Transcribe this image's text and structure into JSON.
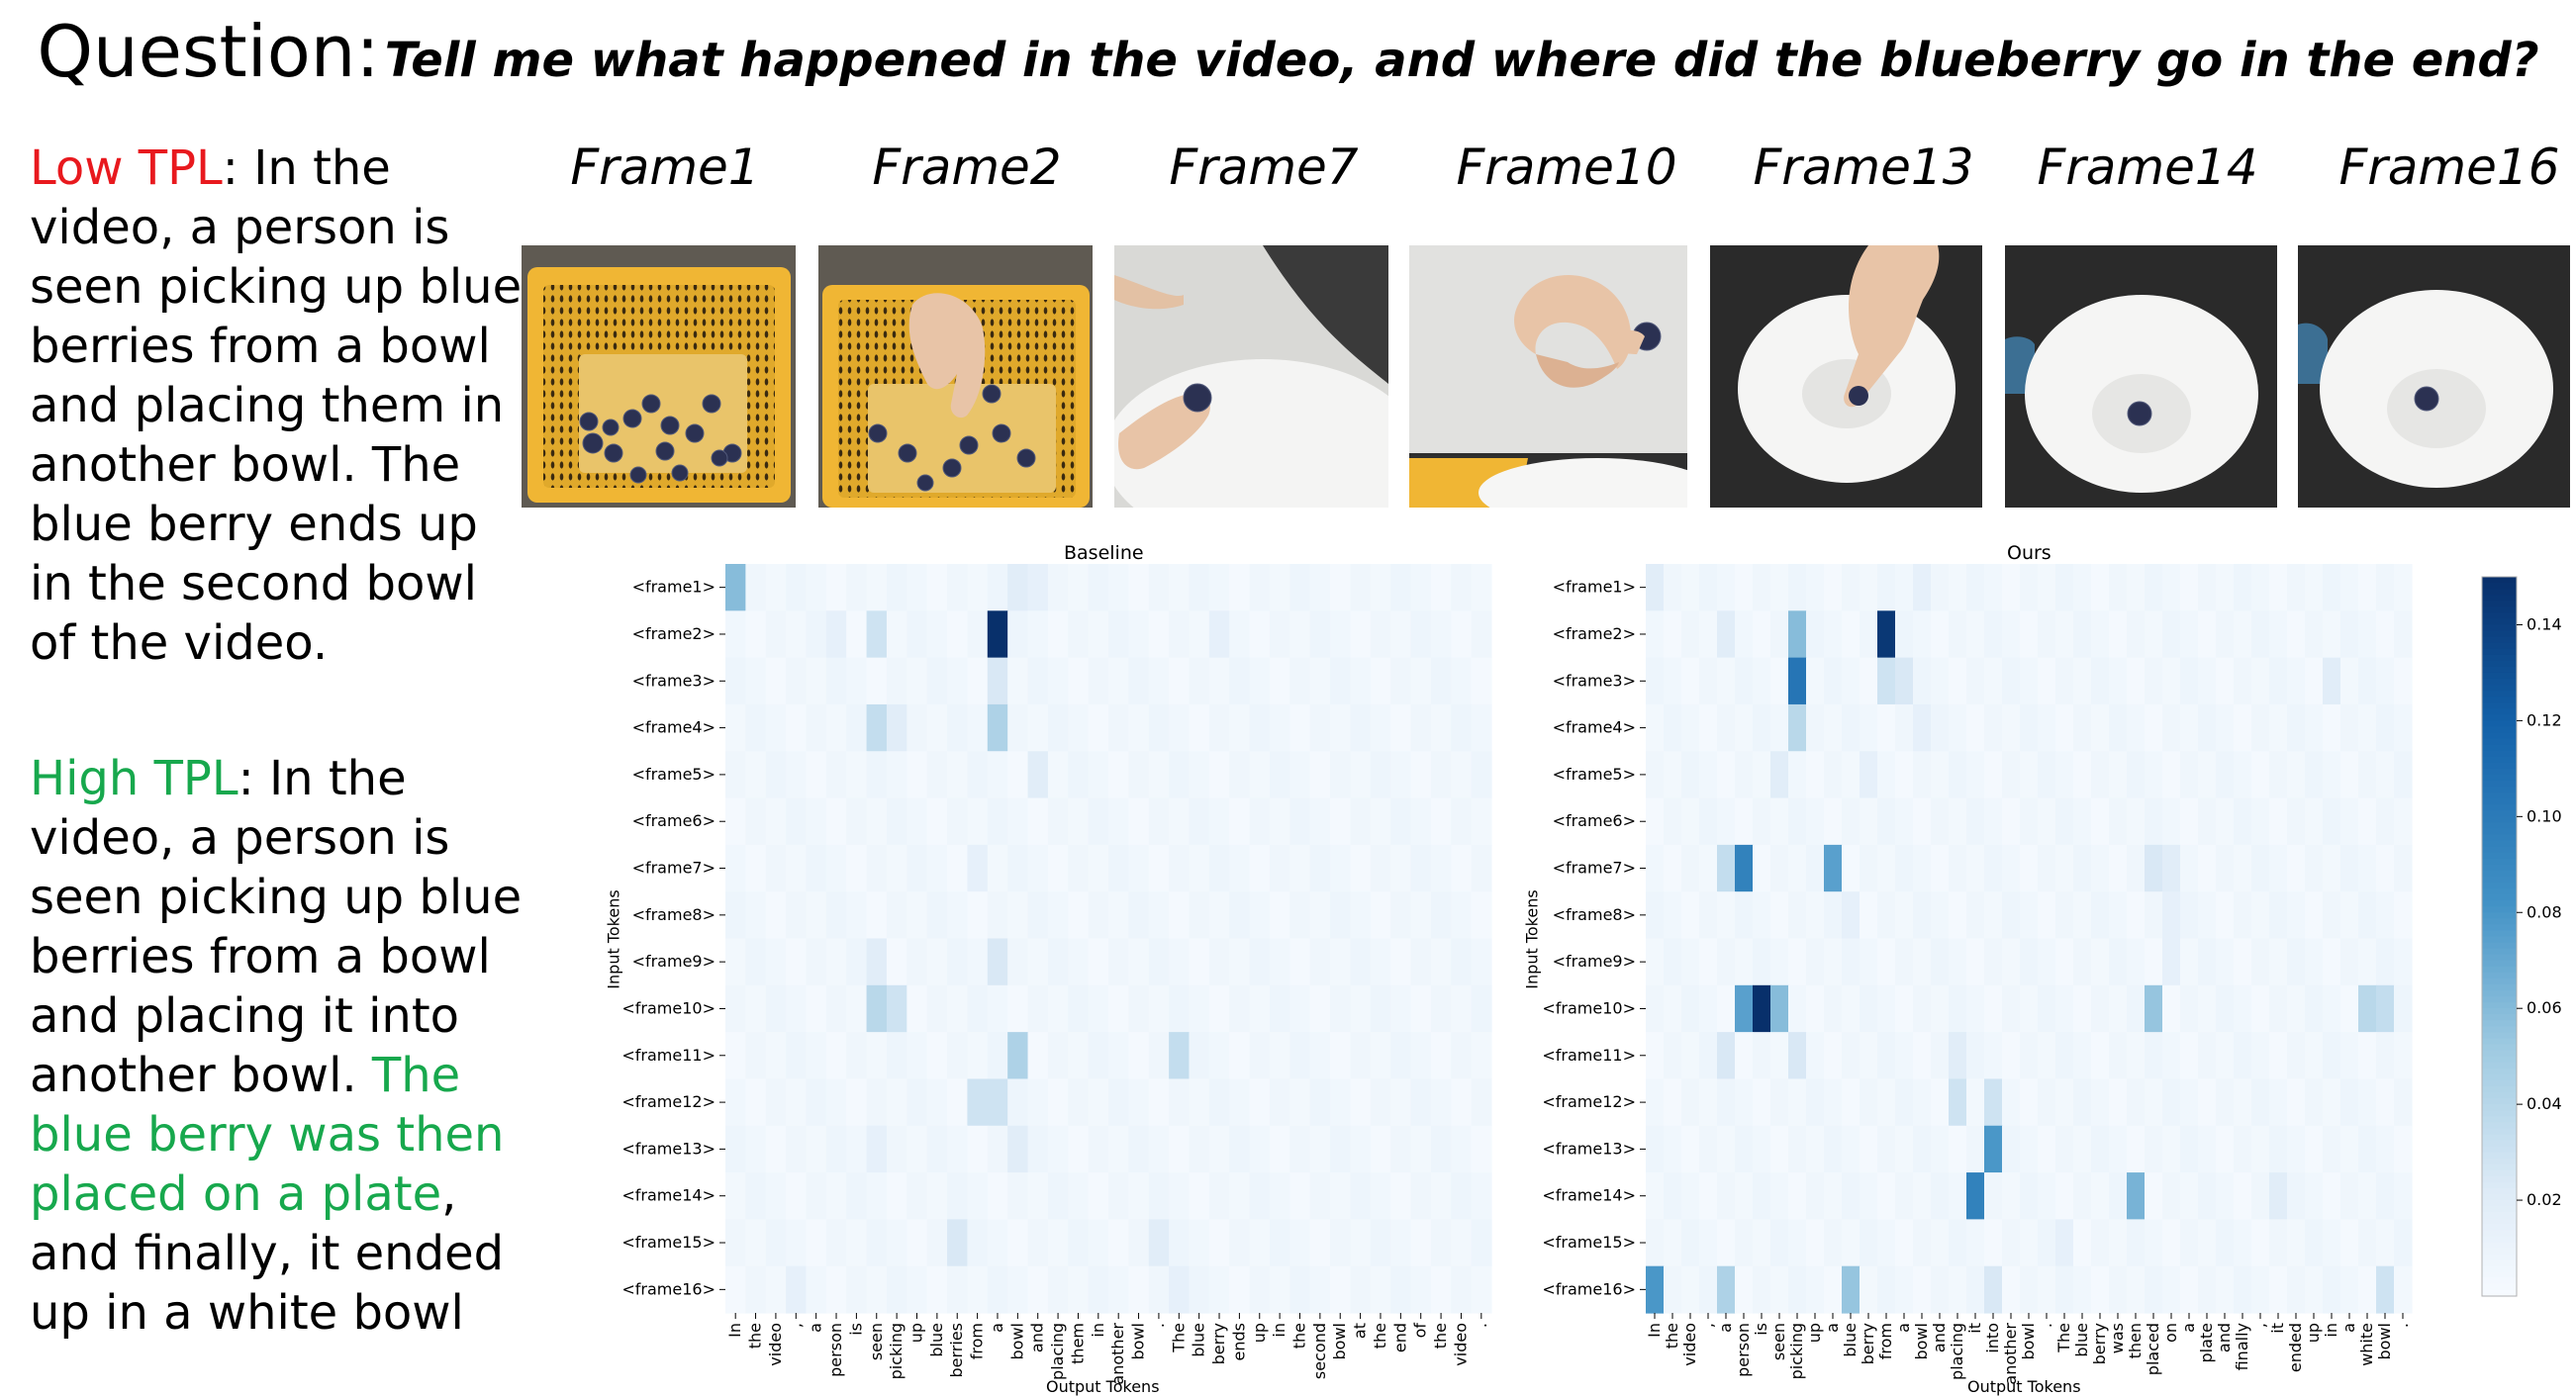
{
  "question": {
    "label": "Question:",
    "text": "Tell me what happened in the video, and where did the blueberry go in the end?"
  },
  "answers": {
    "low": {
      "label": "Low TPL",
      "text": ": In the video, a person is seen picking up blue berries from a bowl and placing them in another bowl. The blue berry ends up in the second bowl of the video.",
      "label_color": "#e8191e"
    },
    "high": {
      "label": "High TPL",
      "text_1": ": In the video, a person is seen picking up blue berries from a bowl and placing it into another bowl. ",
      "text_highlight": "The blue berry was then placed on a plate",
      "text_2": ", and finally, it ended up in a white bowl",
      "label_color": "#17a84d"
    }
  },
  "frames": {
    "labels": [
      "Frame1",
      "Frame2",
      "Frame7",
      "Frame10",
      "Frame13",
      "Frame14",
      "Frame16"
    ]
  },
  "chart_data": [
    {
      "type": "heatmap",
      "title": "Baseline",
      "xlabel": "Output Tokens",
      "ylabel": "Input Tokens",
      "rows": [
        "<frame1>",
        "<frame2>",
        "<frame3>",
        "<frame4>",
        "<frame5>",
        "<frame6>",
        "<frame7>",
        "<frame8>",
        "<frame9>",
        "<frame10>",
        "<frame11>",
        "<frame12>",
        "<frame13>",
        "<frame14>",
        "<frame15>",
        "<frame16>"
      ],
      "columns": [
        "In",
        "the",
        "video",
        ",",
        "a",
        "person",
        "is",
        "seen",
        "picking",
        "up",
        "blue",
        "berries",
        "from",
        "a",
        "bowl",
        "and",
        "placing",
        "them",
        "in",
        "another",
        "bowl",
        ".",
        "The",
        "blue",
        "berry",
        "ends",
        "up",
        "in",
        "the",
        "second",
        "bowl",
        "at",
        "the",
        "end",
        "of",
        "the",
        "video",
        "."
      ],
      "peaks": [
        {
          "row": 0,
          "col": 0,
          "value": 0.06
        },
        {
          "row": 0,
          "col": 14,
          "value": 0.02
        },
        {
          "row": 0,
          "col": 15,
          "value": 0.015
        },
        {
          "row": 1,
          "col": 13,
          "value": 0.15
        },
        {
          "row": 1,
          "col": 7,
          "value": 0.03
        },
        {
          "row": 1,
          "col": 5,
          "value": 0.015
        },
        {
          "row": 1,
          "col": 24,
          "value": 0.015
        },
        {
          "row": 2,
          "col": 13,
          "value": 0.025
        },
        {
          "row": 3,
          "col": 13,
          "value": 0.045
        },
        {
          "row": 3,
          "col": 7,
          "value": 0.035
        },
        {
          "row": 3,
          "col": 8,
          "value": 0.02
        },
        {
          "row": 4,
          "col": 15,
          "value": 0.02
        },
        {
          "row": 6,
          "col": 12,
          "value": 0.015
        },
        {
          "row": 8,
          "col": 7,
          "value": 0.02
        },
        {
          "row": 8,
          "col": 13,
          "value": 0.025
        },
        {
          "row": 9,
          "col": 7,
          "value": 0.04
        },
        {
          "row": 9,
          "col": 8,
          "value": 0.03
        },
        {
          "row": 10,
          "col": 14,
          "value": 0.045
        },
        {
          "row": 10,
          "col": 22,
          "value": 0.035
        },
        {
          "row": 11,
          "col": 13,
          "value": 0.03
        },
        {
          "row": 11,
          "col": 12,
          "value": 0.03
        },
        {
          "row": 12,
          "col": 14,
          "value": 0.02
        },
        {
          "row": 12,
          "col": 7,
          "value": 0.015
        },
        {
          "row": 14,
          "col": 11,
          "value": 0.025
        },
        {
          "row": 14,
          "col": 21,
          "value": 0.02
        },
        {
          "row": 15,
          "col": 3,
          "value": 0.015
        },
        {
          "row": 15,
          "col": 22,
          "value": 0.015
        }
      ]
    },
    {
      "type": "heatmap",
      "title": "Ours",
      "xlabel": "Output Tokens",
      "ylabel": "Input Tokens",
      "rows": [
        "<frame1>",
        "<frame2>",
        "<frame3>",
        "<frame4>",
        "<frame5>",
        "<frame6>",
        "<frame7>",
        "<frame8>",
        "<frame9>",
        "<frame10>",
        "<frame11>",
        "<frame12>",
        "<frame13>",
        "<frame14>",
        "<frame15>",
        "<frame16>"
      ],
      "columns": [
        "In",
        "the",
        "video",
        ",",
        "a",
        "person",
        "is",
        "seen",
        "picking",
        "up",
        "a",
        "blue",
        "berry",
        "from",
        "a",
        "bowl",
        "and",
        "placing",
        "it",
        "into",
        "another",
        "bowl",
        ".",
        "The",
        "blue",
        "berry",
        "was",
        "then",
        "placed",
        "on",
        "a",
        "plate",
        "and",
        "finally",
        ",",
        "it",
        "ended",
        "up",
        "in",
        "a",
        "white",
        "bowl",
        "."
      ],
      "peaks": [
        {
          "row": 0,
          "col": 0,
          "value": 0.02
        },
        {
          "row": 0,
          "col": 15,
          "value": 0.015
        },
        {
          "row": 1,
          "col": 13,
          "value": 0.145
        },
        {
          "row": 1,
          "col": 8,
          "value": 0.06
        },
        {
          "row": 1,
          "col": 4,
          "value": 0.02
        },
        {
          "row": 2,
          "col": 8,
          "value": 0.105
        },
        {
          "row": 2,
          "col": 13,
          "value": 0.03
        },
        {
          "row": 2,
          "col": 14,
          "value": 0.025
        },
        {
          "row": 2,
          "col": 38,
          "value": 0.02
        },
        {
          "row": 3,
          "col": 8,
          "value": 0.04
        },
        {
          "row": 3,
          "col": 15,
          "value": 0.015
        },
        {
          "row": 4,
          "col": 7,
          "value": 0.02
        },
        {
          "row": 4,
          "col": 12,
          "value": 0.015
        },
        {
          "row": 6,
          "col": 5,
          "value": 0.095
        },
        {
          "row": 6,
          "col": 4,
          "value": 0.035
        },
        {
          "row": 6,
          "col": 10,
          "value": 0.075
        },
        {
          "row": 6,
          "col": 28,
          "value": 0.025
        },
        {
          "row": 6,
          "col": 29,
          "value": 0.02
        },
        {
          "row": 7,
          "col": 11,
          "value": 0.015
        },
        {
          "row": 7,
          "col": 29,
          "value": 0.015
        },
        {
          "row": 8,
          "col": 29,
          "value": 0.015
        },
        {
          "row": 9,
          "col": 6,
          "value": 0.15
        },
        {
          "row": 9,
          "col": 5,
          "value": 0.075
        },
        {
          "row": 9,
          "col": 7,
          "value": 0.06
        },
        {
          "row": 9,
          "col": 28,
          "value": 0.055
        },
        {
          "row": 9,
          "col": 40,
          "value": 0.04
        },
        {
          "row": 9,
          "col": 41,
          "value": 0.035
        },
        {
          "row": 10,
          "col": 4,
          "value": 0.025
        },
        {
          "row": 10,
          "col": 8,
          "value": 0.025
        },
        {
          "row": 10,
          "col": 17,
          "value": 0.02
        },
        {
          "row": 11,
          "col": 17,
          "value": 0.03
        },
        {
          "row": 11,
          "col": 19,
          "value": 0.03
        },
        {
          "row": 12,
          "col": 19,
          "value": 0.08
        },
        {
          "row": 13,
          "col": 18,
          "value": 0.095
        },
        {
          "row": 13,
          "col": 27,
          "value": 0.065
        },
        {
          "row": 13,
          "col": 35,
          "value": 0.02
        },
        {
          "row": 14,
          "col": 23,
          "value": 0.015
        },
        {
          "row": 15,
          "col": 0,
          "value": 0.08
        },
        {
          "row": 15,
          "col": 4,
          "value": 0.045
        },
        {
          "row": 15,
          "col": 11,
          "value": 0.055
        },
        {
          "row": 15,
          "col": 19,
          "value": 0.025
        },
        {
          "row": 15,
          "col": 41,
          "value": 0.03
        }
      ]
    }
  ],
  "colorbar": {
    "ticks": [
      "0.02",
      "0.04",
      "0.06",
      "0.08",
      "0.10",
      "0.12",
      "0.14"
    ],
    "min": 0,
    "max": 0.15,
    "low_color": "#f7fbff",
    "high_color": "#08306b"
  }
}
